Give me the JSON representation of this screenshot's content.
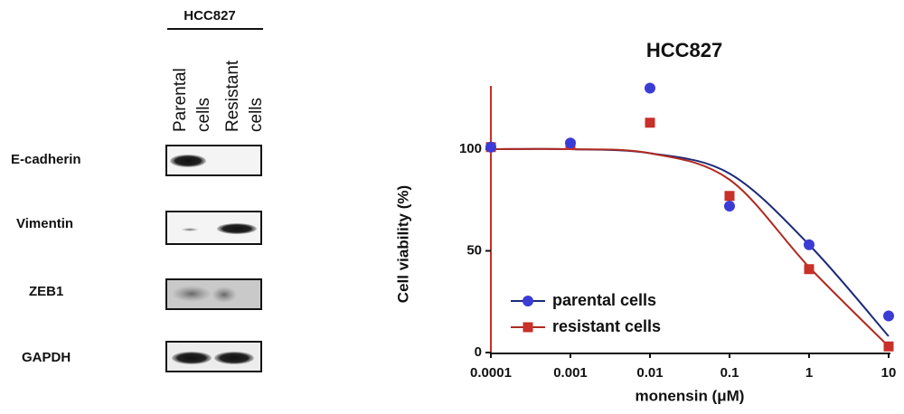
{
  "blot": {
    "title": "HCC827",
    "columns": [
      [
        "Parental",
        "cells"
      ],
      [
        "Resistant",
        "cells"
      ]
    ],
    "rows": [
      "E-cadherin",
      "Vimentin",
      "ZEB1",
      "GAPDH"
    ]
  },
  "chart_data": {
    "type": "scatter",
    "title": "HCC827",
    "x_label": "monensin (μM)",
    "y_label": "Cell viability (%)",
    "x": [
      0.0001,
      0.001,
      0.01,
      0.1,
      1,
      10
    ],
    "xscale": "log",
    "xlim": [
      0.0001,
      10
    ],
    "xticks": [
      0.0001,
      0.001,
      0.01,
      0.1,
      1,
      10
    ],
    "ylim": [
      0,
      130
    ],
    "yticks": [
      0,
      50,
      100
    ],
    "legend": "lower left",
    "series": [
      {
        "name": "parental cells",
        "color": "#3b3bd6",
        "line_color": "#1c2a78",
        "marker": "circle",
        "values": [
          101,
          103,
          130,
          72,
          53,
          18
        ],
        "fit": [
          100,
          100,
          98,
          88,
          53,
          8
        ]
      },
      {
        "name": "resistant cells",
        "color": "#c8302a",
        "line_color": "#b02a22",
        "marker": "square",
        "values": [
          101,
          102,
          113,
          77,
          41,
          3
        ],
        "fit": [
          100,
          100,
          98,
          85,
          42,
          3
        ]
      }
    ]
  }
}
